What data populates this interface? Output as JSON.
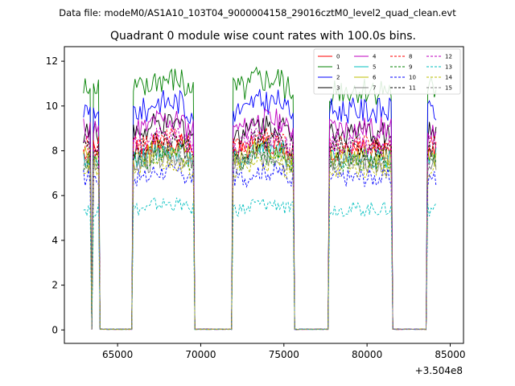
{
  "suptitle": "Data file: modeM0/AS1A10_103T04_9000004158_29016cztM0_level2_quad_clean.evt",
  "chart_data": {
    "type": "line",
    "title": "Quadrant 0 module wise count rates with 100.0s bins.",
    "xlabel": "",
    "ylabel": "",
    "x_offset_label": "+3.504e8",
    "xlim": [
      61800,
      85800
    ],
    "ylim": [
      -0.6,
      12.65
    ],
    "xticks": [
      65000,
      70000,
      75000,
      80000,
      85000
    ],
    "xtick_labels": [
      "65000",
      "70000",
      "75000",
      "80000",
      "85000"
    ],
    "yticks": [
      0,
      2,
      4,
      6,
      8,
      10,
      12
    ],
    "ytick_labels": [
      "0",
      "2",
      "4",
      "6",
      "8",
      "10",
      "12"
    ],
    "grid": false,
    "legend_position": "top-right",
    "active_intervals": [
      [
        62950,
        63350
      ],
      [
        63550,
        63900
      ],
      [
        65950,
        69550
      ],
      [
        71950,
        75550
      ],
      [
        77700,
        81450
      ],
      [
        83650,
        84150
      ]
    ],
    "gap_intervals": [
      [
        64000,
        65950
      ],
      [
        69600,
        71950
      ],
      [
        75600,
        77700
      ],
      [
        81500,
        83600
      ]
    ],
    "series": [
      {
        "name": "0",
        "color": "#ff0000",
        "dash": "solid",
        "level": 8.0
      },
      {
        "name": "1",
        "color": "#008000",
        "dash": "solid",
        "level": 10.7
      },
      {
        "name": "2",
        "color": "#0000ff",
        "dash": "solid",
        "level": 9.8
      },
      {
        "name": "3",
        "color": "#000000",
        "dash": "solid",
        "level": 8.8
      },
      {
        "name": "4",
        "color": "#bf00bf",
        "dash": "solid",
        "level": 9.0
      },
      {
        "name": "5",
        "color": "#00bfbf",
        "dash": "solid",
        "level": 7.7
      },
      {
        "name": "6",
        "color": "#bfbf00",
        "dash": "solid",
        "level": 7.8
      },
      {
        "name": "7",
        "color": "#808080",
        "dash": "solid",
        "level": 7.4
      },
      {
        "name": "8",
        "color": "#ff0000",
        "dash": "dashed",
        "level": 8.2
      },
      {
        "name": "9",
        "color": "#008000",
        "dash": "dashed",
        "level": 7.5
      },
      {
        "name": "10",
        "color": "#0000ff",
        "dash": "dashed",
        "level": 6.8
      },
      {
        "name": "11",
        "color": "#000000",
        "dash": "dashed",
        "level": 8.1
      },
      {
        "name": "12",
        "color": "#bf00bf",
        "dash": "dashed",
        "level": 8.3
      },
      {
        "name": "13",
        "color": "#00bfbf",
        "dash": "dashed",
        "level": 5.4
      },
      {
        "name": "14",
        "color": "#bfbf00",
        "dash": "dashed",
        "level": 7.2
      },
      {
        "name": "15",
        "color": "#808080",
        "dash": "dashed",
        "level": 7.6
      }
    ]
  }
}
